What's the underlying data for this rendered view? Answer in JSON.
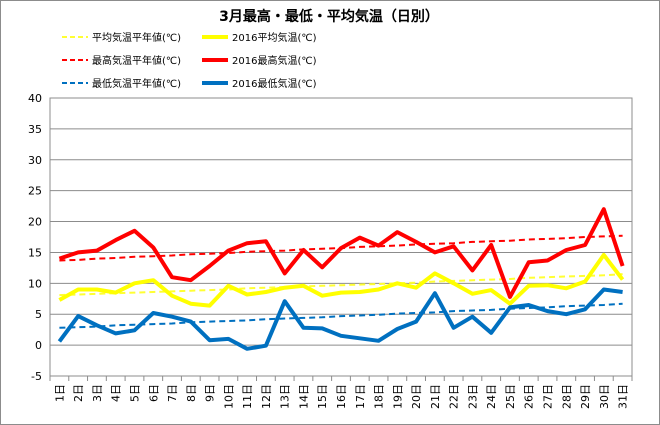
{
  "chart_data": {
    "type": "line",
    "title": "3月最高・最低・平均気温（日別）",
    "x": [
      "1日",
      "2日",
      "3日",
      "4日",
      "5日",
      "6日",
      "7日",
      "8日",
      "9日",
      "10日",
      "11日",
      "12日",
      "13日",
      "14日",
      "15日",
      "16日",
      "17日",
      "18日",
      "19日",
      "20日",
      "21日",
      "22日",
      "23日",
      "24日",
      "25日",
      "26日",
      "27日",
      "28日",
      "29日",
      "30日",
      "31日"
    ],
    "ylim": [
      -5,
      40
    ],
    "yticks": [
      -5,
      0,
      5,
      10,
      15,
      20,
      25,
      30,
      35,
      40
    ],
    "grid": true,
    "legend_position": "top",
    "series": [
      {
        "name": "平均気温平年値(℃)",
        "color": "#ffff33",
        "style": "dashed",
        "width": 2,
        "values": [
          8.1,
          8.2,
          8.3,
          8.4,
          8.5,
          8.6,
          8.7,
          8.8,
          8.9,
          9.0,
          9.2,
          9.3,
          9.4,
          9.5,
          9.6,
          9.7,
          9.8,
          9.9,
          10.0,
          10.1,
          10.3,
          10.4,
          10.5,
          10.6,
          10.7,
          10.9,
          11.0,
          11.1,
          11.2,
          11.3,
          11.5
        ]
      },
      {
        "name": "2016平均気温(℃)",
        "color": "#ffff00",
        "style": "solid",
        "width": 4,
        "values": [
          7.3,
          9.0,
          9.0,
          8.5,
          10.0,
          10.5,
          8.0,
          6.7,
          6.4,
          9.6,
          8.2,
          8.6,
          9.3,
          9.6,
          8.0,
          8.5,
          8.6,
          9.0,
          10.0,
          9.3,
          11.6,
          10.0,
          8.3,
          8.9,
          6.7,
          9.6,
          9.7,
          9.2,
          10.3,
          14.6,
          10.6
        ]
      },
      {
        "name": "最高気温平年値(℃)",
        "color": "#ff0000",
        "style": "dashed",
        "width": 2,
        "values": [
          13.7,
          13.8,
          14.0,
          14.1,
          14.3,
          14.4,
          14.5,
          14.7,
          14.8,
          14.9,
          15.1,
          15.2,
          15.3,
          15.5,
          15.6,
          15.7,
          15.9,
          16.0,
          16.1,
          16.3,
          16.4,
          16.5,
          16.7,
          16.8,
          16.9,
          17.1,
          17.2,
          17.3,
          17.5,
          17.6,
          17.7
        ]
      },
      {
        "name": "2016最高気温(℃)",
        "color": "#ff0000",
        "style": "solid",
        "width": 4,
        "values": [
          14.0,
          15.0,
          15.3,
          17.0,
          18.5,
          15.8,
          11.0,
          10.5,
          12.8,
          15.3,
          16.5,
          16.8,
          11.6,
          15.4,
          12.6,
          15.7,
          17.4,
          16.1,
          18.3,
          16.7,
          15.0,
          16.0,
          12.1,
          16.2,
          7.8,
          13.4,
          13.7,
          15.4,
          16.2,
          22.0,
          12.8
        ]
      },
      {
        "name": "最低気温平年値(℃)",
        "color": "#0070c0",
        "style": "dashed",
        "width": 2,
        "values": [
          2.8,
          2.9,
          3.0,
          3.2,
          3.3,
          3.4,
          3.5,
          3.7,
          3.8,
          3.9,
          4.0,
          4.2,
          4.3,
          4.4,
          4.5,
          4.7,
          4.8,
          4.9,
          5.1,
          5.2,
          5.3,
          5.5,
          5.6,
          5.7,
          5.9,
          6.0,
          6.1,
          6.3,
          6.4,
          6.5,
          6.7
        ]
      },
      {
        "name": "2016最低気温(℃)",
        "color": "#0070c0",
        "style": "solid",
        "width": 4,
        "values": [
          0.6,
          4.7,
          3.2,
          1.9,
          2.4,
          5.2,
          4.6,
          3.8,
          0.8,
          1.0,
          -0.6,
          -0.1,
          7.1,
          2.8,
          2.7,
          1.5,
          1.1,
          0.7,
          2.6,
          3.8,
          8.4,
          2.8,
          4.6,
          2.0,
          6.1,
          6.5,
          5.5,
          5.0,
          5.8,
          9.0,
          8.6
        ]
      }
    ]
  }
}
